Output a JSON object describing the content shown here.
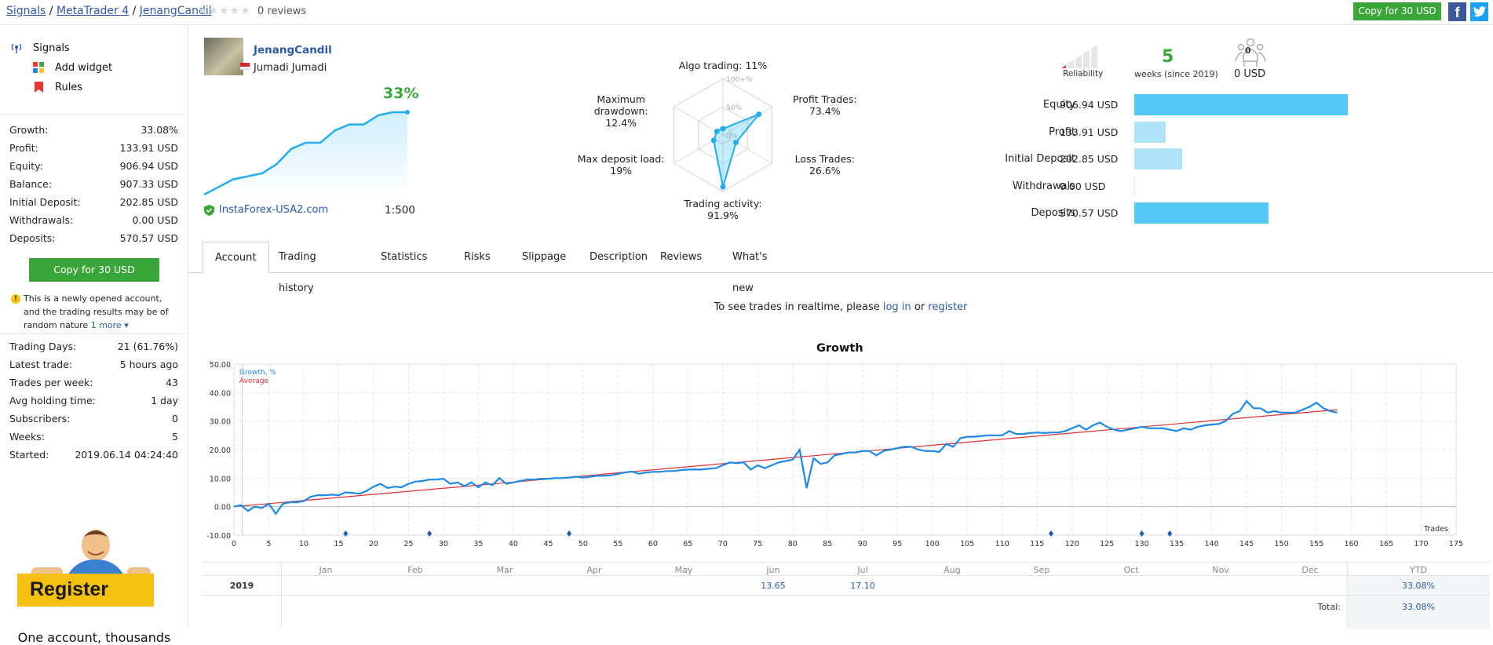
{
  "breadcrumb": {
    "items": [
      "Signals",
      "MetaTrader 4",
      "JenangCandil"
    ],
    "sep": "/"
  },
  "rating": {
    "stars": "★★★★★",
    "reviews": "0 reviews"
  },
  "top_actions": {
    "copy_label": "Copy for 30 USD",
    "facebook": "f",
    "twitter": "🐦"
  },
  "sidebar": {
    "nav": [
      {
        "label": "Signals",
        "icon": "signal-antenna-icon"
      },
      {
        "label": "Add widget",
        "icon": "widget-icon"
      },
      {
        "label": "Rules",
        "icon": "bookmark-icon"
      }
    ],
    "stats": [
      {
        "label": "Growth:",
        "value": "33.08%"
      },
      {
        "label": "Profit:",
        "value": "133.91 USD"
      },
      {
        "label": "Equity:",
        "value": "906.94 USD"
      },
      {
        "label": "Balance:",
        "value": "907.33 USD"
      },
      {
        "label": "Initial Deposit:",
        "value": "202.85 USD"
      },
      {
        "label": "Withdrawals:",
        "value": "0.00 USD"
      },
      {
        "label": "Deposits:",
        "value": "570.57 USD"
      }
    ],
    "copy_label": "Copy for 30 USD",
    "notice": "This is a newly opened account, and the trading results may be of random nature",
    "notice_more": "1 more ▾",
    "stats2": [
      {
        "label": "Trading Days:",
        "value": "21 (61.76%)"
      },
      {
        "label": "Latest trade:",
        "value": "5 hours ago"
      },
      {
        "label": "Trades per week:",
        "value": "43"
      },
      {
        "label": "Avg holding time:",
        "value": "1 day"
      },
      {
        "label": "Subscribers:",
        "value": "0"
      },
      {
        "label": "Weeks:",
        "value": "5"
      },
      {
        "label": "Started:",
        "value": "2019.06.14 04:24:40"
      }
    ],
    "register_label": "Register",
    "one_account": "One account, thousands"
  },
  "provider": {
    "name": "JenangCandil",
    "owner": "Jumadi Jumadi",
    "growth": "33%",
    "broker": "InstaForex-USA2.com",
    "leverage": "1:500",
    "mini_growth": [
      0,
      5,
      10,
      12,
      14,
      20,
      30,
      34,
      34,
      42,
      46,
      46,
      52,
      54,
      54
    ]
  },
  "radar": {
    "ticks": [
      "100+%",
      "50%",
      "0%"
    ],
    "axes": [
      {
        "label": "Algo trading:",
        "value": "11%",
        "frac": 0.11
      },
      {
        "label": "Profit Trades:",
        "value": "73.4%",
        "frac": 0.734
      },
      {
        "label": "Loss Trades:",
        "value": "26.6%",
        "frac": 0.266
      },
      {
        "label": "Trading activity:",
        "value": "91.9%",
        "frac": 0.919
      },
      {
        "label": "Max deposit load:",
        "value": "19%",
        "frac": 0.19
      },
      {
        "label": "Maximum drawdown:",
        "value": "12.4%",
        "frac": 0.124
      }
    ]
  },
  "reliability": {
    "label": "Reliability",
    "weeks": "5",
    "weeks_label": "weeks (since 2019)",
    "subscribers": "0",
    "subscribers_funds": "0 USD"
  },
  "financials": [
    {
      "label": "Equity",
      "value": "906.94 USD",
      "amount": 906.94
    },
    {
      "label": "Profit",
      "value": "133.91 USD",
      "amount": 133.91
    },
    {
      "label": "Initial Deposit",
      "value": "202.85 USD",
      "amount": 202.85
    },
    {
      "label": "Withdrawals",
      "value": "0.00 USD",
      "amount": 0
    },
    {
      "label": "Deposits",
      "value": "570.57 USD",
      "amount": 570.57
    }
  ],
  "colors": {
    "green": "#3aa63a",
    "link": "#2b5aa7",
    "bar": "#56c8f5",
    "bar_light": "#aee3fa",
    "growth_line": "#1e88e5",
    "avg_line": "#e03030"
  },
  "tabs": [
    "Account",
    "Trading history",
    "Statistics",
    "Risks",
    "Slippage",
    "Description",
    "Reviews",
    "What's new"
  ],
  "realtime": {
    "prefix": "To see trades in realtime, please",
    "login": "log in",
    "or": "or",
    "register": "register"
  },
  "chart_data": {
    "type": "line",
    "title": "Growth",
    "xlabel": "Trades",
    "ylabel": "",
    "legend": [
      "Growth, %",
      "Average"
    ],
    "legend_position": "top-left",
    "xlim": [
      0,
      175
    ],
    "ylim": [
      -10,
      50
    ],
    "x_ticks": [
      "0",
      "5",
      "10",
      "15",
      "20",
      "25",
      "30",
      "35",
      "40",
      "45",
      "50",
      "55",
      "60",
      "65",
      "70",
      "75",
      "80",
      "85",
      "90",
      "95",
      "100",
      "105",
      "110",
      "115",
      "120",
      "125",
      "130",
      "135",
      "140",
      "145",
      "150",
      "155",
      "160",
      "165",
      "170",
      "175"
    ],
    "y_ticks": [
      "50.00",
      "40.00",
      "30.00",
      "20.00",
      "10.00",
      "0.00",
      "-10.00"
    ],
    "series": [
      {
        "name": "Growth, %",
        "points": [
          [
            0,
            0
          ],
          [
            1,
            0.5
          ],
          [
            2,
            -1.5
          ],
          [
            3,
            0
          ],
          [
            4,
            -0.5
          ],
          [
            5,
            1
          ],
          [
            6,
            -2.5
          ],
          [
            7,
            1
          ],
          [
            8,
            1.5
          ],
          [
            9,
            1.5
          ],
          [
            10,
            2
          ],
          [
            11,
            3.5
          ],
          [
            12,
            4
          ],
          [
            13,
            4
          ],
          [
            14,
            4.2
          ],
          [
            15,
            4
          ],
          [
            16,
            5
          ],
          [
            17,
            4.8
          ],
          [
            18,
            4.5
          ],
          [
            19,
            5.5
          ],
          [
            20,
            7
          ],
          [
            21,
            8
          ],
          [
            22,
            6.5
          ],
          [
            23,
            7
          ],
          [
            24,
            6.8
          ],
          [
            25,
            8
          ],
          [
            26,
            8.8
          ],
          [
            27,
            9
          ],
          [
            28,
            9.5
          ],
          [
            29,
            9.5
          ],
          [
            30,
            9.8
          ],
          [
            31,
            8
          ],
          [
            32,
            8.5
          ],
          [
            33,
            7.2
          ],
          [
            34,
            8.5
          ],
          [
            35,
            6.8
          ],
          [
            36,
            8.5
          ],
          [
            37,
            7.5
          ],
          [
            38,
            10
          ],
          [
            39,
            8
          ],
          [
            40,
            8.5
          ],
          [
            41,
            9
          ],
          [
            42,
            9.5
          ],
          [
            43,
            9.5
          ],
          [
            44,
            9.8
          ],
          [
            45,
            9.8
          ],
          [
            46,
            10
          ],
          [
            47,
            10
          ],
          [
            48,
            10.2
          ],
          [
            49,
            10.5
          ],
          [
            50,
            10.2
          ],
          [
            51,
            10.5
          ],
          [
            52,
            10.8
          ],
          [
            53,
            10.8
          ],
          [
            54,
            11
          ],
          [
            55,
            11.5
          ],
          [
            56,
            12
          ],
          [
            57,
            12.3
          ],
          [
            58,
            11.5
          ],
          [
            59,
            12
          ],
          [
            60,
            12.2
          ],
          [
            61,
            12.2
          ],
          [
            62,
            12.5
          ],
          [
            63,
            12.5
          ],
          [
            64,
            12.8
          ],
          [
            65,
            13
          ],
          [
            66,
            13
          ],
          [
            67,
            13
          ],
          [
            68,
            13.3
          ],
          [
            69,
            13.5
          ],
          [
            70,
            14.5
          ],
          [
            71,
            15.5
          ],
          [
            72,
            15.2
          ],
          [
            73,
            15.5
          ],
          [
            74,
            13
          ],
          [
            75,
            14.5
          ],
          [
            76,
            13.5
          ],
          [
            77,
            14.5
          ],
          [
            78,
            15.5
          ],
          [
            79,
            16
          ],
          [
            80,
            16.5
          ],
          [
            81,
            20
          ],
          [
            82,
            6.5
          ],
          [
            83,
            17
          ],
          [
            84,
            15
          ],
          [
            85,
            15.5
          ],
          [
            86,
            18
          ],
          [
            87,
            18.5
          ],
          [
            88,
            19
          ],
          [
            89,
            19
          ],
          [
            90,
            19.5
          ],
          [
            91,
            19.5
          ],
          [
            92,
            18
          ],
          [
            93,
            19.5
          ],
          [
            94,
            20
          ],
          [
            95,
            20.5
          ],
          [
            96,
            21
          ],
          [
            97,
            21
          ],
          [
            98,
            20
          ],
          [
            99,
            19.5
          ],
          [
            100,
            19.5
          ],
          [
            101,
            19.2
          ],
          [
            102,
            22
          ],
          [
            103,
            21
          ],
          [
            104,
            24
          ],
          [
            105,
            24.5
          ],
          [
            106,
            24.5
          ],
          [
            107,
            24.8
          ],
          [
            108,
            25
          ],
          [
            109,
            25
          ],
          [
            110,
            25
          ],
          [
            111,
            26.5
          ],
          [
            112,
            25.5
          ],
          [
            113,
            25.5
          ],
          [
            114,
            25.8
          ],
          [
            115,
            26
          ],
          [
            116,
            25.8
          ],
          [
            117,
            26
          ],
          [
            118,
            26
          ],
          [
            119,
            26.5
          ],
          [
            120,
            27.5
          ],
          [
            121,
            28.5
          ],
          [
            122,
            27
          ],
          [
            123,
            28.5
          ],
          [
            124,
            29.5
          ],
          [
            125,
            28
          ],
          [
            126,
            27
          ],
          [
            127,
            26.5
          ],
          [
            128,
            27
          ],
          [
            129,
            27.5
          ],
          [
            130,
            28
          ],
          [
            131,
            27.5
          ],
          [
            132,
            27.5
          ],
          [
            133,
            27.5
          ],
          [
            134,
            27
          ],
          [
            135,
            26.5
          ],
          [
            136,
            27.5
          ],
          [
            137,
            27
          ],
          [
            138,
            28
          ],
          [
            139,
            28.5
          ],
          [
            140,
            28.8
          ],
          [
            141,
            29
          ],
          [
            142,
            30
          ],
          [
            143,
            32.5
          ],
          [
            144,
            33.5
          ],
          [
            145,
            37
          ],
          [
            146,
            34.5
          ],
          [
            147,
            34.5
          ],
          [
            148,
            33
          ],
          [
            149,
            33.5
          ],
          [
            150,
            33
          ],
          [
            151,
            33
          ],
          [
            152,
            33
          ],
          [
            153,
            34
          ],
          [
            154,
            35
          ],
          [
            155,
            36.5
          ],
          [
            156,
            34.5
          ],
          [
            157,
            33.5
          ],
          [
            158,
            33
          ]
        ]
      },
      {
        "name": "Average",
        "points": [
          [
            0,
            0
          ],
          [
            158,
            34
          ]
        ]
      }
    ],
    "markers_x": [
      16,
      28,
      48,
      117,
      130,
      134
    ]
  },
  "year_table": {
    "months": [
      "Jan",
      "Feb",
      "Mar",
      "Apr",
      "May",
      "Jun",
      "Jul",
      "Aug",
      "Sep",
      "Oct",
      "Nov",
      "Dec"
    ],
    "ytd_label": "YTD",
    "rows": [
      {
        "year": "2019",
        "Jun": "13.65",
        "Jul": "17.10",
        "ytd": "33.08%"
      }
    ],
    "total_label": "Total:",
    "total": "33.08%"
  }
}
